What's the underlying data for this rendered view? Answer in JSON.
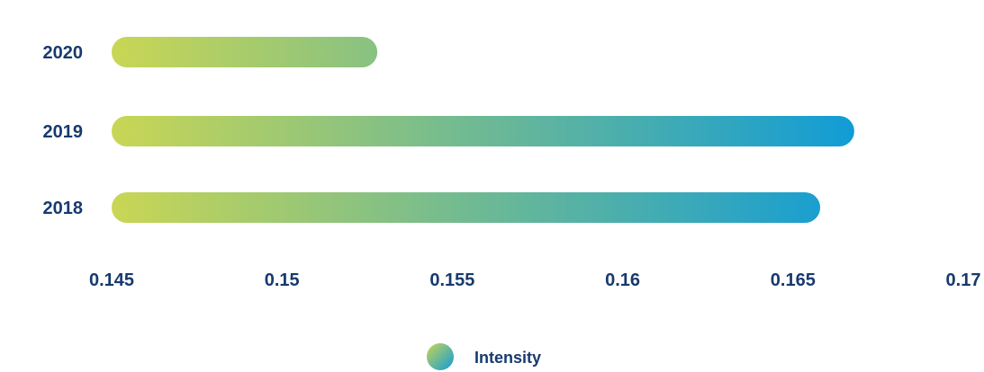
{
  "chart_data": {
    "type": "bar",
    "orientation": "horizontal",
    "categories": [
      "2020",
      "2019",
      "2018"
    ],
    "series": [
      {
        "name": "Intensity",
        "values": [
          0.1528,
          0.1668,
          0.1658
        ]
      }
    ],
    "xlim": [
      0.145,
      0.17
    ],
    "x_ticks": [
      "0.145",
      "0.15",
      "0.155",
      "0.16",
      "0.165",
      "0.17"
    ],
    "grid": "vertical",
    "legend": {
      "position": "bottom-center",
      "label": "Intensity"
    },
    "colors": {
      "gradient_start": "#c9d654",
      "gradient_end": "#0e9bd8",
      "text": "#173a6e"
    }
  }
}
